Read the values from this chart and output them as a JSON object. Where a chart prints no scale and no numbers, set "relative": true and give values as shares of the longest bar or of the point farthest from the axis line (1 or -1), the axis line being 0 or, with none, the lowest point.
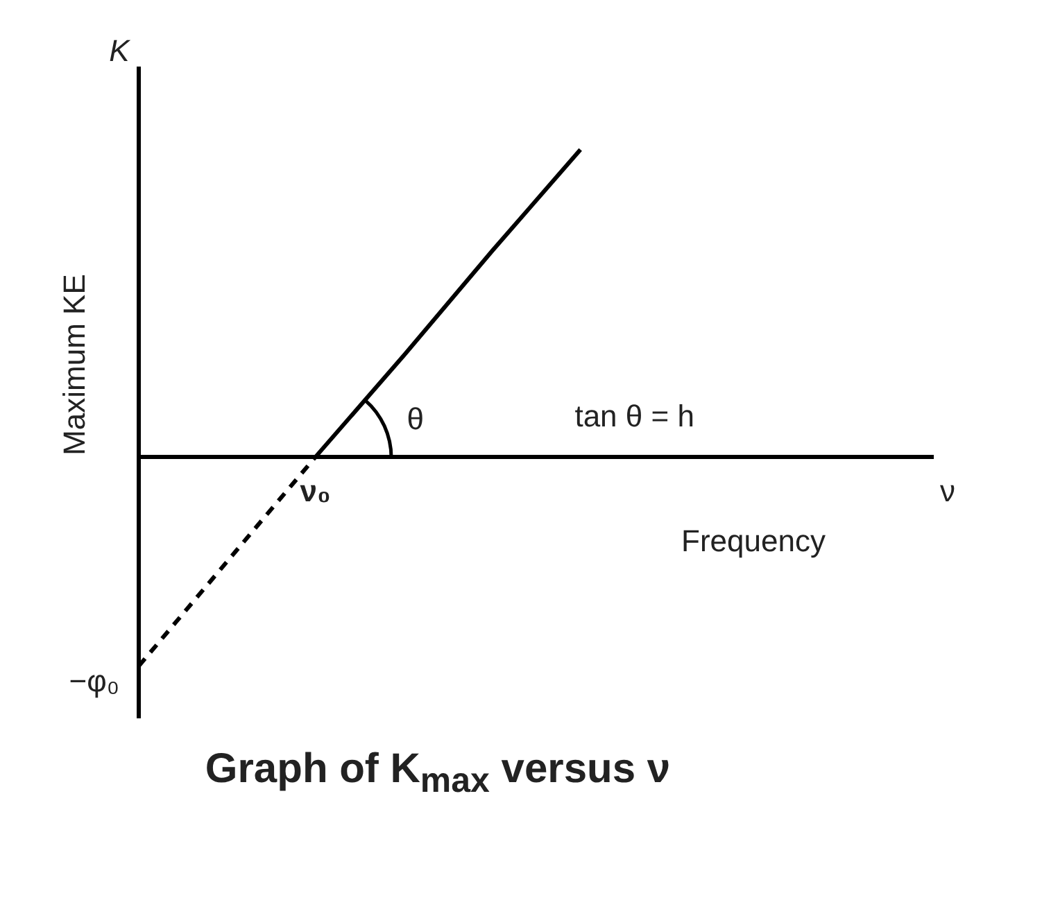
{
  "chart_data": {
    "type": "line",
    "relative": true,
    "title": "Graph of K$_{max}$ versus ν",
    "xlabel": "Frequency",
    "ylabel": "Maximum KE",
    "categories": [
      null,
      null,
      null,
      null,
      null,
      null,
      null,
      null,
      null,
      null
    ],
    "series": [
      {
        "color": "#000000",
        "line_style": "dashed",
        "values": [
          -0.68,
          -0.34,
          0,
          null,
          null,
          null,
          null,
          null,
          null,
          null
        ]
      },
      {
        "color": "#000000",
        "line_style": "solid",
        "values": [
          null,
          null,
          0,
          0.33,
          0.67,
          1,
          null,
          null,
          null,
          null
        ]
      }
    ],
    "annotations": [
      "K",
      "ν",
      "θ",
      "tan θ = h",
      "−φ₀",
      {
        "text": "ν₀",
        "y": 0
      }
    ],
    "marker": "none",
    "legend": false,
    "grid": false
  }
}
